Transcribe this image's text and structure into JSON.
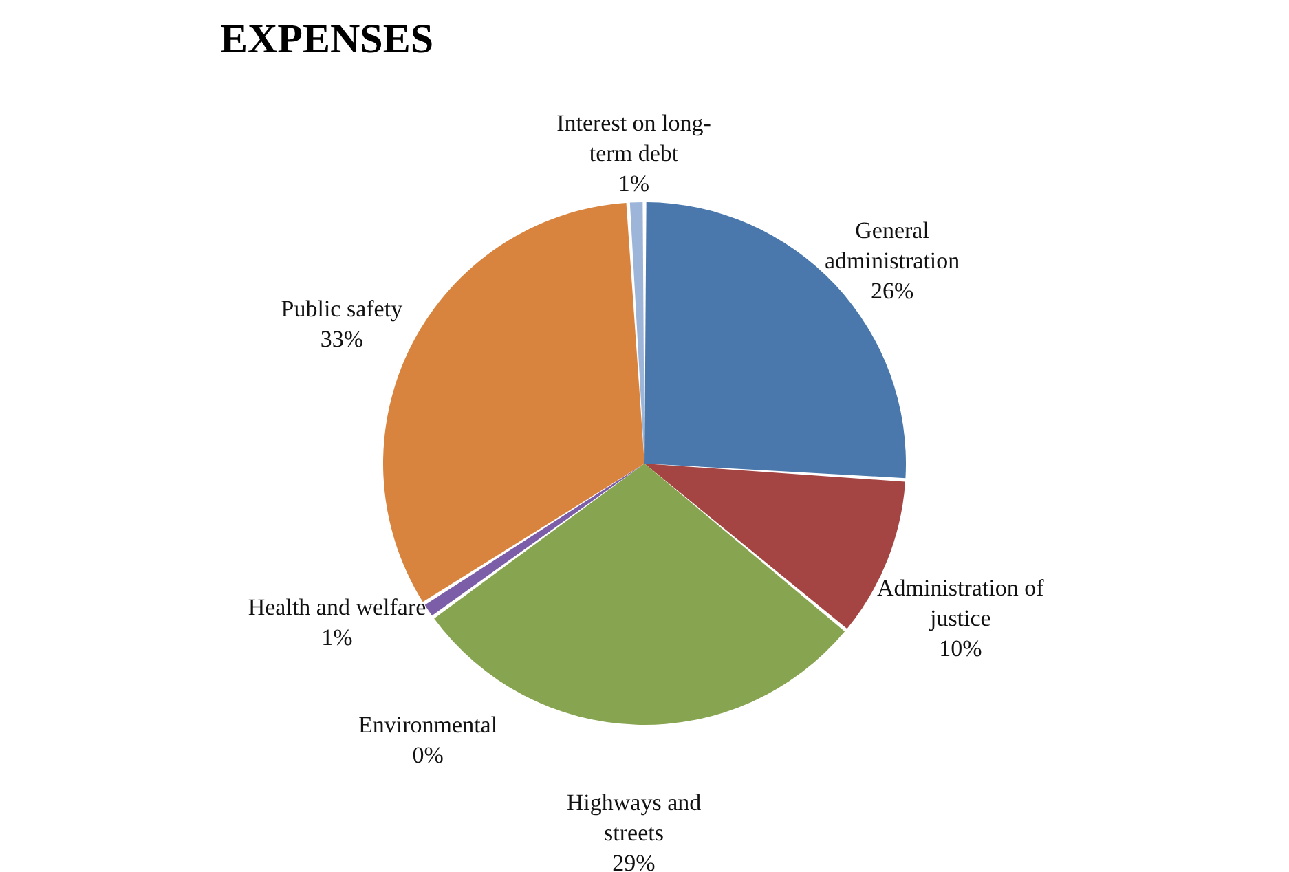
{
  "chart_data": {
    "type": "pie",
    "title": "EXPENSES",
    "categories": [
      "General administration",
      "Administration of justice",
      "Highways and streets",
      "Environmental",
      "Health and welfare",
      "Public safety",
      "Interest on long-term debt"
    ],
    "values": [
      26,
      10,
      29,
      0,
      1,
      33,
      1
    ],
    "value_labels": [
      "26%",
      "10%",
      "29%",
      "0%",
      "1%",
      "33%",
      "1%"
    ],
    "colors": [
      "#4a78ac",
      "#a54543",
      "#87a450",
      "#4aacc6",
      "#7b5ea7",
      "#d9843e",
      "#9db5d9"
    ],
    "legend": false
  }
}
